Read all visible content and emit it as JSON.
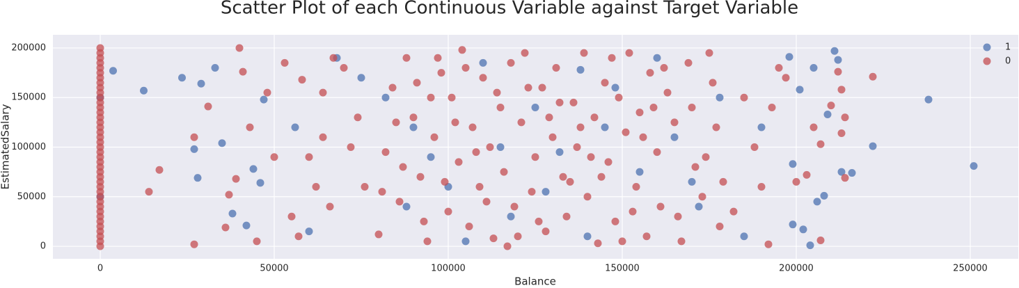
{
  "chart_data": {
    "type": "scatter",
    "title": "Scatter Plot of each Continuous Variable against Target Variable",
    "x_label": "Balance",
    "y_label": "EstimatedSalary",
    "xlim": [
      -13600,
      263800
    ],
    "ylim": [
      -12600,
      213300
    ],
    "xticks": [
      0,
      50000,
      100000,
      150000,
      200000,
      250000
    ],
    "yticks": [
      0,
      50000,
      100000,
      150000,
      200000
    ],
    "grid": true,
    "legend": "upper right",
    "series": [
      {
        "name": "1",
        "color": "#4c72b0",
        "x": [
          0,
          0,
          3700,
          12500,
          23500,
          29000,
          27000,
          28000,
          33000,
          35000,
          38000,
          42000,
          44000,
          47000,
          46000,
          238000,
          251000,
          222000,
          216000,
          213000,
          211000,
          212000,
          205000,
          201000,
          209000,
          199000,
          202000,
          204000,
          206000,
          208000,
          198000,
          199000,
          60000,
          75000,
          90000,
          100000,
          110000,
          118000,
          125000,
          132000,
          140000,
          148000,
          155000,
          165000,
          172000,
          178000,
          185000,
          190000,
          95000,
          105000,
          115000,
          128000,
          138000,
          145000,
          88000,
          68000,
          56000,
          82000,
          160000,
          170000
        ],
        "values": [
          50000,
          150000,
          177000,
          157000,
          170000,
          164000,
          98000,
          69000,
          180000,
          104000,
          33000,
          21000,
          78000,
          148000,
          64000,
          148000,
          81000,
          101000,
          74000,
          75000,
          197000,
          188000,
          180000,
          158000,
          133000,
          22000,
          17000,
          1000,
          45000,
          51000,
          191000,
          83000,
          15000,
          170000,
          120000,
          60000,
          185000,
          30000,
          140000,
          95000,
          10000,
          160000,
          75000,
          110000,
          40000,
          150000,
          10000,
          120000,
          90000,
          5000,
          100000,
          55000,
          178000,
          120000,
          40000,
          190000,
          120000,
          150000,
          190000,
          65000
        ]
      },
      {
        "name": "0",
        "color": "#c44e52",
        "x": [
          0,
          0,
          0,
          0,
          0,
          0,
          0,
          0,
          0,
          0,
          0,
          0,
          0,
          0,
          0,
          0,
          0,
          0,
          0,
          0,
          0,
          0,
          0,
          0,
          0,
          0,
          0,
          0,
          0,
          0,
          0,
          0,
          0,
          0,
          0,
          0,
          0,
          0,
          0,
          0,
          0,
          14000,
          17000,
          27000,
          27000,
          31000,
          36000,
          37000,
          39000,
          40000,
          41000,
          43000,
          45000,
          48000,
          50000,
          53000,
          55000,
          58000,
          62000,
          64000,
          67000,
          182000,
          185000,
          188000,
          190000,
          192000,
          193000,
          195000,
          197000,
          200000,
          203000,
          205000,
          207000,
          207000,
          210000,
          213000,
          212000,
          214000,
          213000,
          214000,
          222000,
          80000,
          82000,
          84000,
          86000,
          88000,
          90000,
          92000,
          94000,
          96000,
          98000,
          100000,
          101000,
          103000,
          104000,
          106000,
          107000,
          109000,
          110000,
          112000,
          113000,
          115000,
          116000,
          118000,
          119000,
          121000,
          122000,
          124000,
          125000,
          127000,
          128000,
          130000,
          131000,
          133000,
          134000,
          136000,
          137000,
          139000,
          140000,
          142000,
          143000,
          145000,
          146000,
          148000,
          149000,
          151000,
          152000,
          154000,
          155000,
          157000,
          158000,
          160000,
          161000,
          163000,
          165000,
          167000,
          169000,
          171000,
          173000,
          175000,
          177000,
          178000,
          74000,
          76000,
          72000,
          70000,
          66000,
          64000,
          60000,
          57000,
          85000,
          95000,
          105000,
          111000,
          117000,
          123000,
          129000,
          135000,
          141000,
          147000,
          153000,
          159000,
          87000,
          93000,
          99000,
          126000,
          132000,
          144000,
          150000,
          138000,
          120000,
          108000,
          97000,
          81000,
          91000,
          102000,
          114000,
          156000,
          162000,
          166000,
          170000,
          174000,
          176000,
          179000
        ],
        "values": [
          0,
          5000,
          10000,
          15000,
          20000,
          25000,
          30000,
          35000,
          40000,
          45000,
          50000,
          55000,
          60000,
          65000,
          70000,
          75000,
          80000,
          85000,
          90000,
          95000,
          100000,
          105000,
          110000,
          115000,
          120000,
          125000,
          130000,
          135000,
          140000,
          145000,
          150000,
          155000,
          160000,
          165000,
          170000,
          175000,
          180000,
          185000,
          190000,
          195000,
          200000,
          55000,
          77000,
          110000,
          2000,
          141000,
          19000,
          52000,
          68000,
          200000,
          176000,
          120000,
          5000,
          155000,
          90000,
          185000,
          30000,
          168000,
          60000,
          110000,
          190000,
          35000,
          150000,
          100000,
          60000,
          2000,
          140000,
          180000,
          170000,
          65000,
          72000,
          120000,
          6000,
          103000,
          142000,
          158000,
          176000,
          130000,
          114000,
          69000,
          171000,
          12000,
          95000,
          160000,
          45000,
          190000,
          130000,
          70000,
          5000,
          110000,
          175000,
          35000,
          150000,
          85000,
          198000,
          20000,
          120000,
          60000,
          170000,
          100000,
          8000,
          140000,
          75000,
          185000,
          40000,
          125000,
          195000,
          55000,
          90000,
          160000,
          15000,
          110000,
          180000,
          70000,
          30000,
          145000,
          100000,
          195000,
          50000,
          130000,
          3000,
          165000,
          85000,
          25000,
          150000,
          115000,
          195000,
          60000,
          135000,
          10000,
          175000,
          95000,
          40000,
          155000,
          125000,
          5000,
          185000,
          80000,
          50000,
          195000,
          120000,
          20000,
          130000,
          60000,
          100000,
          180000,
          40000,
          155000,
          90000,
          10000,
          125000,
          150000,
          180000,
          45000,
          0,
          160000,
          130000,
          65000,
          90000,
          190000,
          35000,
          140000,
          80000,
          25000,
          65000,
          25000,
          145000,
          70000,
          5000,
          120000,
          10000,
          95000,
          190000,
          55000,
          165000,
          125000,
          155000,
          110000,
          180000,
          30000,
          140000,
          90000,
          165000,
          65000
        ]
      }
    ]
  }
}
